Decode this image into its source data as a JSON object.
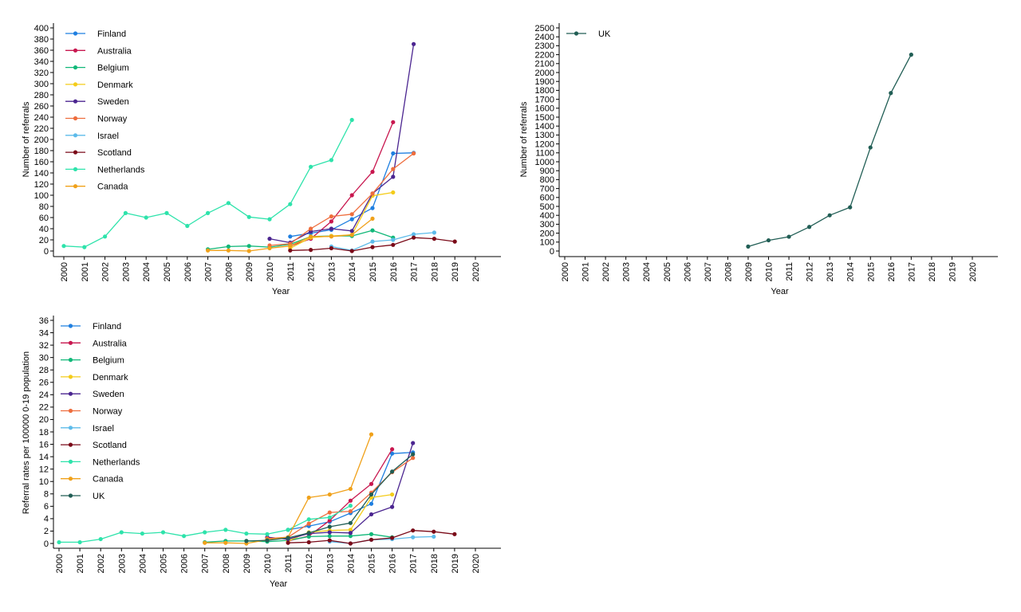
{
  "chart_data": [
    {
      "type": "line",
      "xlabel": "Year",
      "ylabel": "Number of referrals",
      "x_ticks": [
        "2000",
        "2001",
        "2002",
        "2003",
        "2004",
        "2005",
        "2006",
        "2007",
        "2008",
        "2009",
        "2010",
        "2011",
        "2012",
        "2013",
        "2014",
        "2015",
        "2016",
        "2017",
        "2018",
        "2019",
        "2020"
      ],
      "y_ticks": [
        "0",
        "20",
        "40",
        "60",
        "80",
        "100",
        "120",
        "140",
        "160",
        "180",
        "200",
        "220",
        "240",
        "260",
        "280",
        "300",
        "320",
        "340",
        "360",
        "380",
        "400"
      ],
      "xlim": [
        2000,
        2020
      ],
      "ylim": [
        0,
        400
      ],
      "legend_position": "top-left",
      "series": [
        {
          "name": "Finland",
          "color": "#1f7fe0",
          "x": [
            2011,
            2012,
            2013,
            2014,
            2015,
            2016,
            2017
          ],
          "y": [
            26,
            32,
            38,
            57,
            77,
            175,
            176
          ]
        },
        {
          "name": "Australia",
          "color": "#c8174f",
          "x": [
            2011,
            2012,
            2013,
            2014,
            2015,
            2016
          ],
          "y": [
            9,
            22,
            53,
            100,
            142,
            231
          ]
        },
        {
          "name": "Belgium",
          "color": "#11b879",
          "x": [
            2007,
            2008,
            2009,
            2010,
            2011,
            2012,
            2013,
            2014,
            2015,
            2016
          ],
          "y": [
            3,
            8,
            9,
            7,
            12,
            26,
            27,
            27,
            37,
            24
          ]
        },
        {
          "name": "Denmark",
          "color": "#f4cc1a",
          "x": [
            2011,
            2012,
            2013,
            2014,
            2015,
            2016
          ],
          "y": [
            5,
            24,
            27,
            29,
            99,
            105
          ]
        },
        {
          "name": "Sweden",
          "color": "#4b2590",
          "x": [
            2010,
            2011,
            2012,
            2013,
            2014,
            2015,
            2016,
            2017
          ],
          "y": [
            22,
            15,
            35,
            40,
            36,
            103,
            133,
            371
          ]
        },
        {
          "name": "Norway",
          "color": "#ee6d3d",
          "x": [
            2010,
            2011,
            2012,
            2013,
            2014,
            2015,
            2016,
            2017
          ],
          "y": [
            10,
            13,
            40,
            62,
            66,
            103,
            147,
            175
          ]
        },
        {
          "name": "Israel",
          "color": "#5dbbea",
          "x": [
            2013,
            2014,
            2015,
            2016,
            2017,
            2018
          ],
          "y": [
            8,
            1,
            17,
            20,
            30,
            33
          ]
        },
        {
          "name": "Scotland",
          "color": "#7a0a18",
          "x": [
            2011,
            2012,
            2013,
            2014,
            2015,
            2016,
            2017,
            2018,
            2019
          ],
          "y": [
            1,
            2,
            5,
            0,
            7,
            11,
            24,
            22,
            17
          ]
        },
        {
          "name": "Netherlands",
          "color": "#2ee3ab",
          "x": [
            2000,
            2001,
            2002,
            2003,
            2004,
            2005,
            2006,
            2007,
            2008,
            2009,
            2010,
            2011,
            2012,
            2013,
            2014
          ],
          "y": [
            9,
            7,
            26,
            68,
            60,
            68,
            45,
            68,
            86,
            61,
            57,
            84,
            151,
            163,
            235
          ]
        },
        {
          "name": "Canada",
          "color": "#f0a11a",
          "x": [
            2007,
            2008,
            2009,
            2010,
            2011,
            2012,
            2013,
            2014,
            2015
          ],
          "y": [
            1,
            1,
            0,
            5,
            9,
            26,
            26,
            29,
            58
          ]
        }
      ]
    },
    {
      "type": "line",
      "xlabel": "Year",
      "ylabel": "Number of referrals",
      "x_ticks": [
        "2000",
        "2001",
        "2002",
        "2003",
        "2004",
        "2005",
        "2006",
        "2007",
        "2008",
        "2009",
        "2010",
        "2011",
        "2012",
        "2013",
        "2014",
        "2015",
        "2016",
        "2017",
        "2018",
        "2019",
        "2020"
      ],
      "y_ticks": [
        "0",
        "100",
        "200",
        "300",
        "400",
        "500",
        "600",
        "700",
        "800",
        "900",
        "1000",
        "1100",
        "1200",
        "1300",
        "1400",
        "1500",
        "1600",
        "1700",
        "1800",
        "1900",
        "2000",
        "2100",
        "2200",
        "2300",
        "2400",
        "2500"
      ],
      "xlim": [
        2000,
        2020
      ],
      "ylim": [
        0,
        2500
      ],
      "legend_position": "top-left",
      "series": [
        {
          "name": "UK",
          "color": "#215e55",
          "x": [
            2009,
            2010,
            2011,
            2012,
            2013,
            2014,
            2015,
            2016,
            2017
          ],
          "y": [
            50,
            120,
            160,
            270,
            400,
            490,
            1160,
            1770,
            2200
          ]
        }
      ]
    },
    {
      "type": "line",
      "xlabel": "Year",
      "ylabel": "Referral rates per 100000 0-19 population",
      "x_ticks": [
        "2000",
        "2001",
        "2002",
        "2003",
        "2004",
        "2005",
        "2006",
        "2007",
        "2008",
        "2009",
        "2010",
        "2011",
        "2012",
        "2013",
        "2014",
        "2015",
        "2016",
        "2017",
        "2018",
        "2019",
        "2020"
      ],
      "y_ticks": [
        "0",
        "2",
        "4",
        "6",
        "8",
        "10",
        "12",
        "14",
        "16",
        "18",
        "20",
        "22",
        "24",
        "26",
        "28",
        "30",
        "32",
        "34",
        "36"
      ],
      "xlim": [
        2000,
        2020
      ],
      "ylim": [
        0,
        36
      ],
      "legend_position": "top-left",
      "series": [
        {
          "name": "Finland",
          "color": "#1f7fe0",
          "x": [
            2011,
            2012,
            2013,
            2014,
            2015,
            2016,
            2017
          ],
          "y": [
            2.2,
            2.8,
            3.5,
            4.9,
            6.4,
            14.5,
            14.7
          ]
        },
        {
          "name": "Australia",
          "color": "#c8174f",
          "x": [
            2011,
            2012,
            2013,
            2014,
            2015,
            2016
          ],
          "y": [
            0.4,
            1.2,
            3.7,
            6.9,
            9.6,
            15.2
          ]
        },
        {
          "name": "Belgium",
          "color": "#11b879",
          "x": [
            2007,
            2008,
            2009,
            2010,
            2011,
            2012,
            2013,
            2014,
            2015,
            2016
          ],
          "y": [
            0.2,
            0.4,
            0.4,
            0.3,
            0.5,
            1.1,
            1.2,
            1.2,
            1.5,
            1.0
          ]
        },
        {
          "name": "Denmark",
          "color": "#f4cc1a",
          "x": [
            2011,
            2012,
            2013,
            2014,
            2015,
            2016
          ],
          "y": [
            0.4,
            1.8,
            2.1,
            2.2,
            7.4,
            7.9
          ]
        },
        {
          "name": "Sweden",
          "color": "#4b2590",
          "x": [
            2010,
            2011,
            2012,
            2013,
            2014,
            2015,
            2016,
            2017
          ],
          "y": [
            1.0,
            0.7,
            1.6,
            1.8,
            1.7,
            4.7,
            5.9,
            16.2
          ]
        },
        {
          "name": "Norway",
          "color": "#ee6d3d",
          "x": [
            2010,
            2011,
            2012,
            2013,
            2014,
            2015,
            2016,
            2017
          ],
          "y": [
            0.8,
            1.0,
            3.2,
            5.0,
            5.2,
            8.2,
            11.5,
            13.8
          ]
        },
        {
          "name": "Israel",
          "color": "#5dbbea",
          "x": [
            2013,
            2014,
            2015,
            2016,
            2017,
            2018
          ],
          "y": [
            0.3,
            0.0,
            0.6,
            0.7,
            1.0,
            1.1
          ]
        },
        {
          "name": "Scotland",
          "color": "#7a0a18",
          "x": [
            2011,
            2012,
            2013,
            2014,
            2015,
            2016,
            2017,
            2018,
            2019
          ],
          "y": [
            0.1,
            0.2,
            0.5,
            0.0,
            0.6,
            0.9,
            2.1,
            1.9,
            1.5
          ]
        },
        {
          "name": "Netherlands",
          "color": "#2ee3ab",
          "x": [
            2000,
            2001,
            2002,
            2003,
            2004,
            2005,
            2006,
            2007,
            2008,
            2009,
            2010,
            2011,
            2012,
            2013,
            2014
          ],
          "y": [
            0.2,
            0.2,
            0.7,
            1.8,
            1.6,
            1.8,
            1.2,
            1.8,
            2.2,
            1.6,
            1.5,
            2.2,
            3.9,
            4.2,
            6.1
          ]
        },
        {
          "name": "Canada",
          "color": "#f0a11a",
          "x": [
            2007,
            2008,
            2009,
            2010,
            2011,
            2012,
            2013,
            2014,
            2015
          ],
          "y": [
            0.1,
            0.1,
            0.0,
            0.6,
            1.0,
            7.4,
            7.9,
            8.8,
            17.6
          ]
        },
        {
          "name": "UK",
          "color": "#215e55",
          "x": [
            2009,
            2010,
            2011,
            2012,
            2013,
            2014,
            2015,
            2016,
            2017
          ],
          "y": [
            0.4,
            0.5,
            0.9,
            1.7,
            2.7,
            3.3,
            7.9,
            11.6,
            14.4
          ]
        }
      ]
    }
  ]
}
